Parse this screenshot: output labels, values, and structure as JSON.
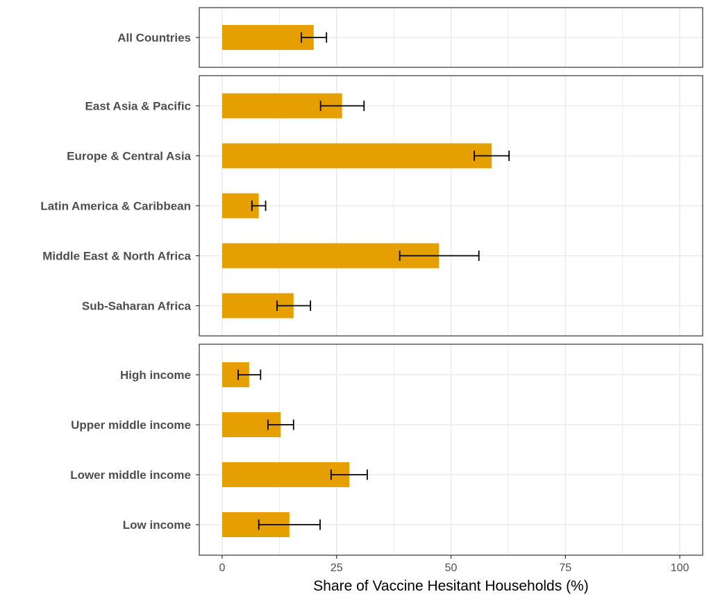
{
  "colors": {
    "bar": "#E69F00",
    "grid": "#EBEBEB",
    "panel_border": "#333333",
    "error_bar": "#000000"
  },
  "chart_data": {
    "type": "bar",
    "orientation": "horizontal",
    "xlabel": "Share of Vaccine Hesitant Households (%)",
    "ylabel": "",
    "xlim": [
      -5,
      105
    ],
    "x_ticks": [
      "0",
      "25",
      "50",
      "75",
      "100"
    ],
    "grid": true,
    "legend": "none",
    "panels": [
      {
        "categories": [
          "All Countries"
        ],
        "values": [
          20
        ],
        "error_low": [
          17.3
        ],
        "error_high": [
          22.8
        ]
      },
      {
        "categories": [
          "Sub-Saharan Africa",
          "Middle East & North Africa",
          "Latin America & Caribbean",
          "Europe & Central Asia",
          "East Asia & Pacific"
        ],
        "values": [
          15.6,
          47.4,
          8,
          58.9,
          26.2
        ],
        "error_low": [
          12,
          38.8,
          6.5,
          55.1,
          21.5
        ],
        "error_high": [
          19.3,
          56.1,
          9.5,
          62.7,
          31
        ]
      },
      {
        "categories": [
          "Low income",
          "Lower middle income",
          "Upper middle income",
          "High income"
        ],
        "values": [
          14.7,
          27.8,
          12.8,
          5.9
        ],
        "error_low": [
          8,
          23.8,
          10,
          3.5
        ],
        "error_high": [
          21.4,
          31.7,
          15.6,
          8.4
        ]
      }
    ]
  }
}
